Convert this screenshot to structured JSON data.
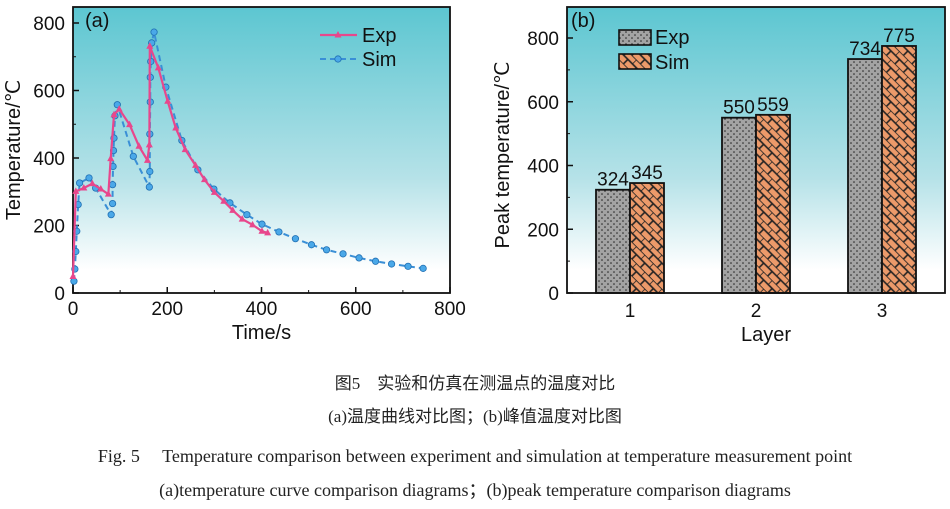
{
  "colors": {
    "exp_line": "#e8478c",
    "sim_line": "#3a8fd6",
    "exp_bar": "#a3a3a3",
    "sim_bar": "#ec9a6a",
    "bg_top": "#5cc6d1",
    "bg_bottom": "#ffffff"
  },
  "chart_data": [
    {
      "type": "line",
      "panel_label": "(a)",
      "xlabel": "Time/s",
      "ylabel": "Temperature/℃",
      "xlim": [
        0,
        800
      ],
      "ylim": [
        0,
        800
      ],
      "xticks": [
        "0",
        "200",
        "400",
        "600",
        "800"
      ],
      "yticks": [
        "0",
        "200",
        "400",
        "600",
        "800"
      ],
      "legend_position": "top-right",
      "series": [
        {
          "name": "Exp",
          "marker": "triangle",
          "style": "solid",
          "x": [
            0,
            6,
            23,
            41,
            59,
            75,
            80,
            87,
            98,
            120,
            140,
            158,
            162,
            163,
            181,
            201,
            218,
            238,
            260,
            279,
            300,
            320,
            339,
            359,
            381,
            401,
            413
          ],
          "y": [
            49,
            301,
            311,
            324,
            308,
            293,
            398,
            528,
            545,
            499,
            435,
            393,
            439,
            731,
            667,
            568,
            489,
            425,
            378,
            336,
            298,
            272,
            245,
            219,
            202,
            183,
            178
          ]
        },
        {
          "name": "Sim",
          "marker": "circle",
          "style": "dashed",
          "x": [
            2,
            4,
            6,
            8,
            11,
            14,
            34,
            48,
            81,
            84,
            84,
            85,
            86,
            87,
            89,
            94,
            128,
            162,
            163,
            163,
            164,
            164,
            165,
            167,
            172,
            197,
            231,
            265,
            299,
            333,
            369,
            401,
            437,
            472,
            506,
            538,
            573,
            607,
            642,
            676,
            711,
            743
          ],
          "y": [
            35,
            71,
            123,
            183,
            262,
            326,
            341,
            311,
            232,
            265,
            321,
            375,
            422,
            459,
            525,
            558,
            405,
            314,
            360,
            471,
            566,
            639,
            686,
            741,
            773,
            610,
            452,
            365,
            308,
            267,
            232,
            204,
            181,
            161,
            143,
            128,
            116,
            104,
            94,
            86,
            79,
            73
          ]
        }
      ]
    },
    {
      "type": "bar",
      "panel_label": "(b)",
      "xlabel": "Layer",
      "ylabel": "Peak temperature/℃",
      "categories": [
        "1",
        "2",
        "3"
      ],
      "ylim": [
        0,
        900
      ],
      "yticks": [
        "0",
        "200",
        "400",
        "600",
        "800"
      ],
      "legend_position": "top-left",
      "series": [
        {
          "name": "Exp",
          "values": [
            324,
            550,
            734
          ]
        },
        {
          "name": "Sim",
          "values": [
            345,
            559,
            775
          ]
        }
      ]
    }
  ],
  "caption": {
    "zh_title": "图5　实验和仿真在测温点的温度对比",
    "zh_sub": "(a)温度曲线对比图；(b)峰值温度对比图",
    "en_title": "Fig. 5　 Temperature comparison between experiment and simulation at temperature measurement point",
    "en_sub": "(a)temperature curve comparison diagrams；(b)peak temperature comparison diagrams"
  }
}
